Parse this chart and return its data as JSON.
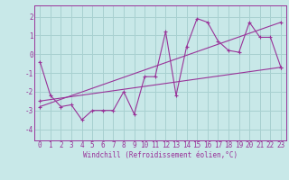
{
  "xlabel": "Windchill (Refroidissement éolien,°C)",
  "bg_color": "#c8e8e8",
  "grid_color": "#a8d0d0",
  "line_color": "#993399",
  "xlim": [
    -0.5,
    23.5
  ],
  "ylim": [
    -4.6,
    2.6
  ],
  "yticks": [
    -4,
    -3,
    -2,
    -1,
    0,
    1,
    2
  ],
  "xticks": [
    0,
    1,
    2,
    3,
    4,
    5,
    6,
    7,
    8,
    9,
    10,
    11,
    12,
    13,
    14,
    15,
    16,
    17,
    18,
    19,
    20,
    21,
    22,
    23
  ],
  "series1_x": [
    0,
    1,
    2,
    3,
    4,
    5,
    6,
    7,
    8,
    9,
    10,
    11,
    12,
    13,
    14,
    15,
    16,
    17,
    18,
    19,
    20,
    21,
    22,
    23
  ],
  "series1_y": [
    -0.4,
    -2.2,
    -2.8,
    -2.7,
    -3.5,
    -3.0,
    -3.0,
    -3.0,
    -2.0,
    -3.2,
    -1.2,
    -1.2,
    1.2,
    -2.2,
    0.4,
    1.9,
    1.7,
    0.7,
    0.2,
    0.1,
    1.7,
    0.9,
    0.9,
    -0.7
  ],
  "series2_x": [
    0,
    23
  ],
  "series2_y": [
    -2.5,
    -0.7
  ],
  "series3_x": [
    0,
    23
  ],
  "series3_y": [
    -2.8,
    1.7
  ],
  "tick_fontsize": 5.5,
  "xlabel_fontsize": 5.5
}
